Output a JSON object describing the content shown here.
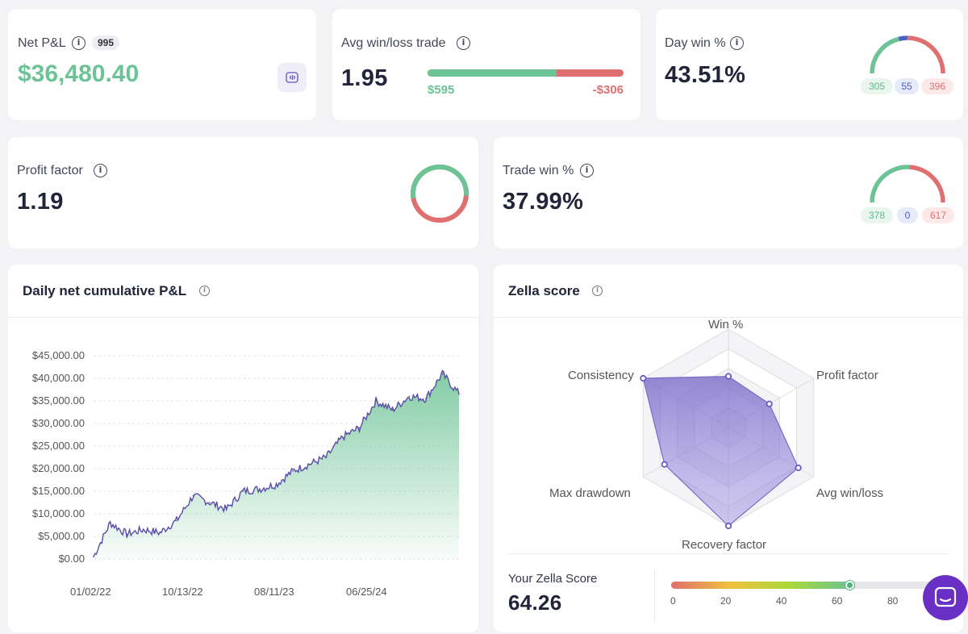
{
  "net_pnl": {
    "label": "Net P&L",
    "count_badge": "995",
    "value": "$36,480.40"
  },
  "avg_win_loss": {
    "label": "Avg win/loss trade",
    "value": "1.95",
    "avg_win": "$595",
    "avg_loss": "-$306",
    "win_share": 0.66
  },
  "day_win": {
    "label": "Day win %",
    "value": "43.51%",
    "wins": "305",
    "breakeven": "55",
    "losses": "396"
  },
  "profit_factor": {
    "label": "Profit factor",
    "value": "1.19",
    "win_share": 0.54
  },
  "trade_win": {
    "label": "Trade win %",
    "value": "37.99%",
    "wins": "378",
    "breakeven": "0",
    "losses": "617"
  },
  "cumulative": {
    "title": "Daily net cumulative P&L",
    "y_ticks": [
      "$45,000.00",
      "$40,000.00",
      "$35,000.00",
      "$30,000.00",
      "$25,000.00",
      "$20,000.00",
      "$15,000.00",
      "$10,000.00",
      "$5,000.00",
      "$0.00"
    ],
    "x_ticks": [
      "01/02/22",
      "10/13/22",
      "08/11/23",
      "06/25/24"
    ]
  },
  "chart_data": {
    "type": "area",
    "title": "Daily net cumulative P&L",
    "xlabel": "",
    "ylabel": "",
    "ylim": [
      0,
      45000
    ],
    "x_tick_labels": [
      "01/02/22",
      "10/13/22",
      "08/11/23",
      "06/25/24"
    ],
    "x": [
      "01/02/22",
      "03/01/22",
      "05/01/22",
      "07/01/22",
      "09/01/22",
      "10/13/22",
      "12/01/22",
      "02/01/23",
      "03/15/23",
      "05/01/23",
      "07/01/23",
      "08/11/23",
      "10/01/23",
      "12/01/23",
      "02/01/24",
      "04/01/24",
      "06/25/24",
      "08/01/24",
      "09/15/24",
      "11/01/24",
      "12/15/24",
      "02/01/25",
      "03/01/25"
    ],
    "series": [
      {
        "values": [
          500,
          8000,
          5500,
          6500,
          5800,
          8500,
          14000,
          12500,
          11000,
          15000,
          15500,
          16500,
          19500,
          21000,
          22500,
          27000,
          29000,
          35000,
          33000,
          36000,
          35500,
          41000,
          36500
        ]
      }
    ]
  },
  "zella": {
    "title": "Zella score",
    "axes": [
      "Win %",
      "Profit factor",
      "Avg win/loss",
      "Recovery factor",
      "Max drawdown",
      "Consistency"
    ],
    "axis_values": [
      52,
      48,
      82,
      100,
      75,
      100
    ],
    "score_label": "Your Zella Score",
    "score": "64.26",
    "score_value": 64.26,
    "scale_ticks": [
      "0",
      "20",
      "40",
      "60",
      "80"
    ]
  },
  "colors": {
    "green": "#6cc395",
    "red": "#e07070",
    "purple": "#7b6bc9",
    "blue": "#4a5fc1"
  },
  "chat": {
    "icon": "chat-icon"
  }
}
